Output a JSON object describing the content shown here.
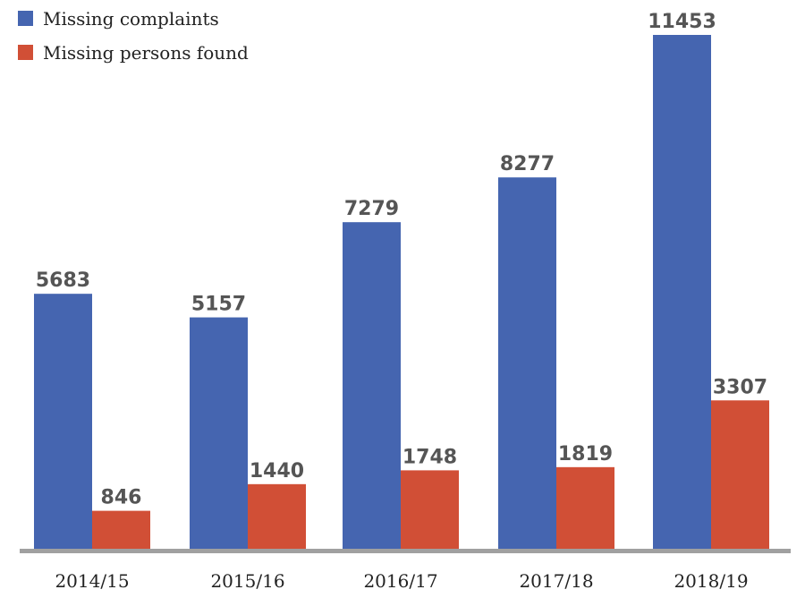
{
  "chart_data": {
    "type": "bar",
    "title": "",
    "xlabel": "",
    "ylabel": "",
    "categories": [
      "2014/15",
      "2015/16",
      "2016/17",
      "2017/18",
      "2018/19"
    ],
    "series": [
      {
        "name": "Missing complaints",
        "color": "#4565B0",
        "values": [
          5683,
          5157,
          7279,
          8277,
          11453
        ]
      },
      {
        "name": "Missing persons found",
        "color": "#D14F36",
        "values": [
          846,
          1440,
          1748,
          1819,
          3307
        ]
      }
    ],
    "ylim": [
      0,
      11453
    ],
    "grid": false,
    "legend": "top-left",
    "axis_color": "#A0A0A0"
  }
}
